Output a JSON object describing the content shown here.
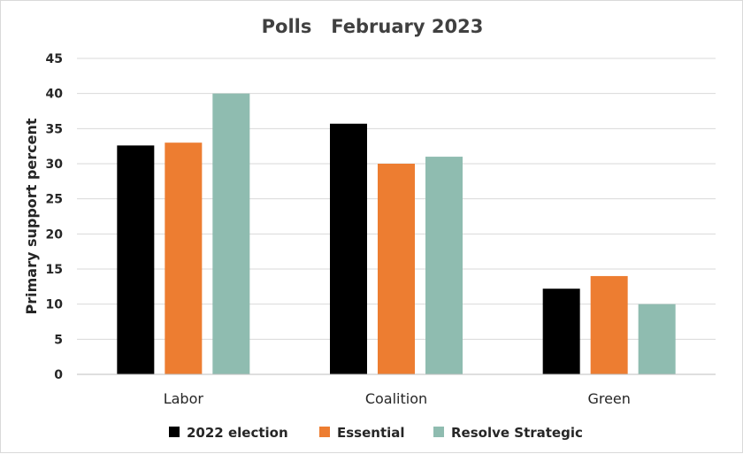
{
  "chart_data": {
    "type": "bar",
    "title": "Polls   February 2023",
    "xlabel": "",
    "ylabel": "Primary support percent",
    "ylim": [
      0,
      45
    ],
    "yticks": [
      0,
      5,
      10,
      15,
      20,
      25,
      30,
      35,
      40,
      45
    ],
    "grid": true,
    "legend_position": "bottom",
    "categories": [
      "Labor",
      "Coalition",
      "Green"
    ],
    "series": [
      {
        "name": "2022 election",
        "color": "#000000",
        "values": [
          32.6,
          35.7,
          12.2
        ]
      },
      {
        "name": "Essential",
        "color": "#ed7d31",
        "values": [
          33,
          30,
          14
        ]
      },
      {
        "name": "Resolve Strategic",
        "color": "#8fbcb0",
        "values": [
          40,
          31,
          10
        ]
      }
    ]
  }
}
